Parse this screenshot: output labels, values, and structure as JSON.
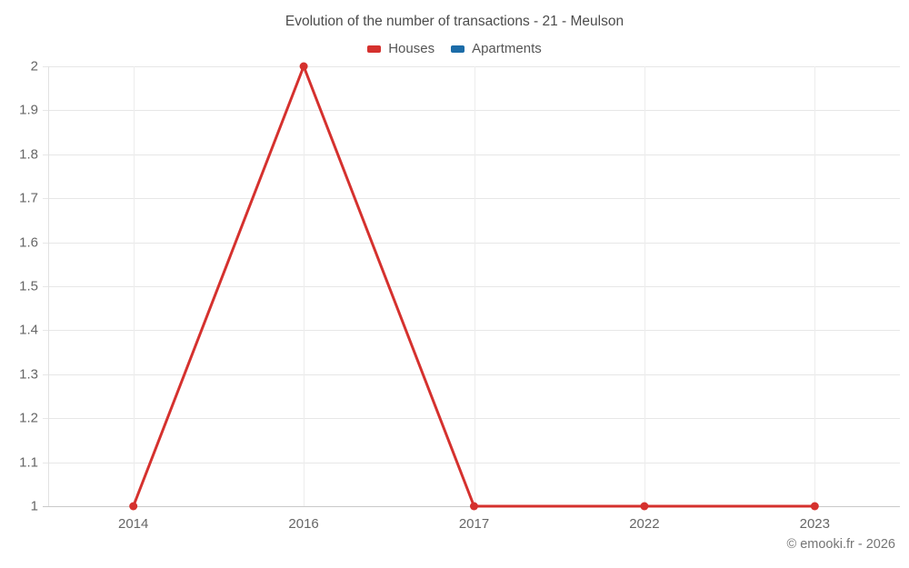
{
  "header": {
    "title": "Evolution of the number of transactions - 21 - Meulson"
  },
  "legend": [
    {
      "label": "Houses",
      "color": "#d5312e"
    },
    {
      "label": "Apartments",
      "color": "#1c6ca8"
    }
  ],
  "footer": {
    "credit": "© emooki.fr - 2026"
  },
  "colors": {
    "houses_series": "#d5312e",
    "apartments_series": "#1c6ca8",
    "title_text": "#4c4c4c",
    "axis_label_text": "#666666",
    "gridline": "#e7e7e7",
    "axis_baseline": "#c9c9c9",
    "credit_text": "#757575"
  },
  "chart_data": {
    "type": "line",
    "title": "Evolution of the number of transactions - 21 - Meulson",
    "categories": [
      "2014",
      "2016",
      "2017",
      "2022",
      "2023"
    ],
    "series": [
      {
        "name": "Houses",
        "color": "#d5312e",
        "values": [
          1,
          2,
          1,
          1,
          1
        ]
      },
      {
        "name": "Apartments",
        "color": "#1c6ca8",
        "values": []
      }
    ],
    "xlabel": "",
    "ylabel": "",
    "ylim": [
      1,
      2
    ],
    "ytick_step": 0.1,
    "ytick_labels": [
      "1",
      "1.1",
      "1.2",
      "1.3",
      "1.4",
      "1.5",
      "1.6",
      "1.7",
      "1.8",
      "1.9",
      "2"
    ],
    "grid": true,
    "legend_position": "top",
    "marker_radius": 4.5,
    "line_width": 3
  }
}
